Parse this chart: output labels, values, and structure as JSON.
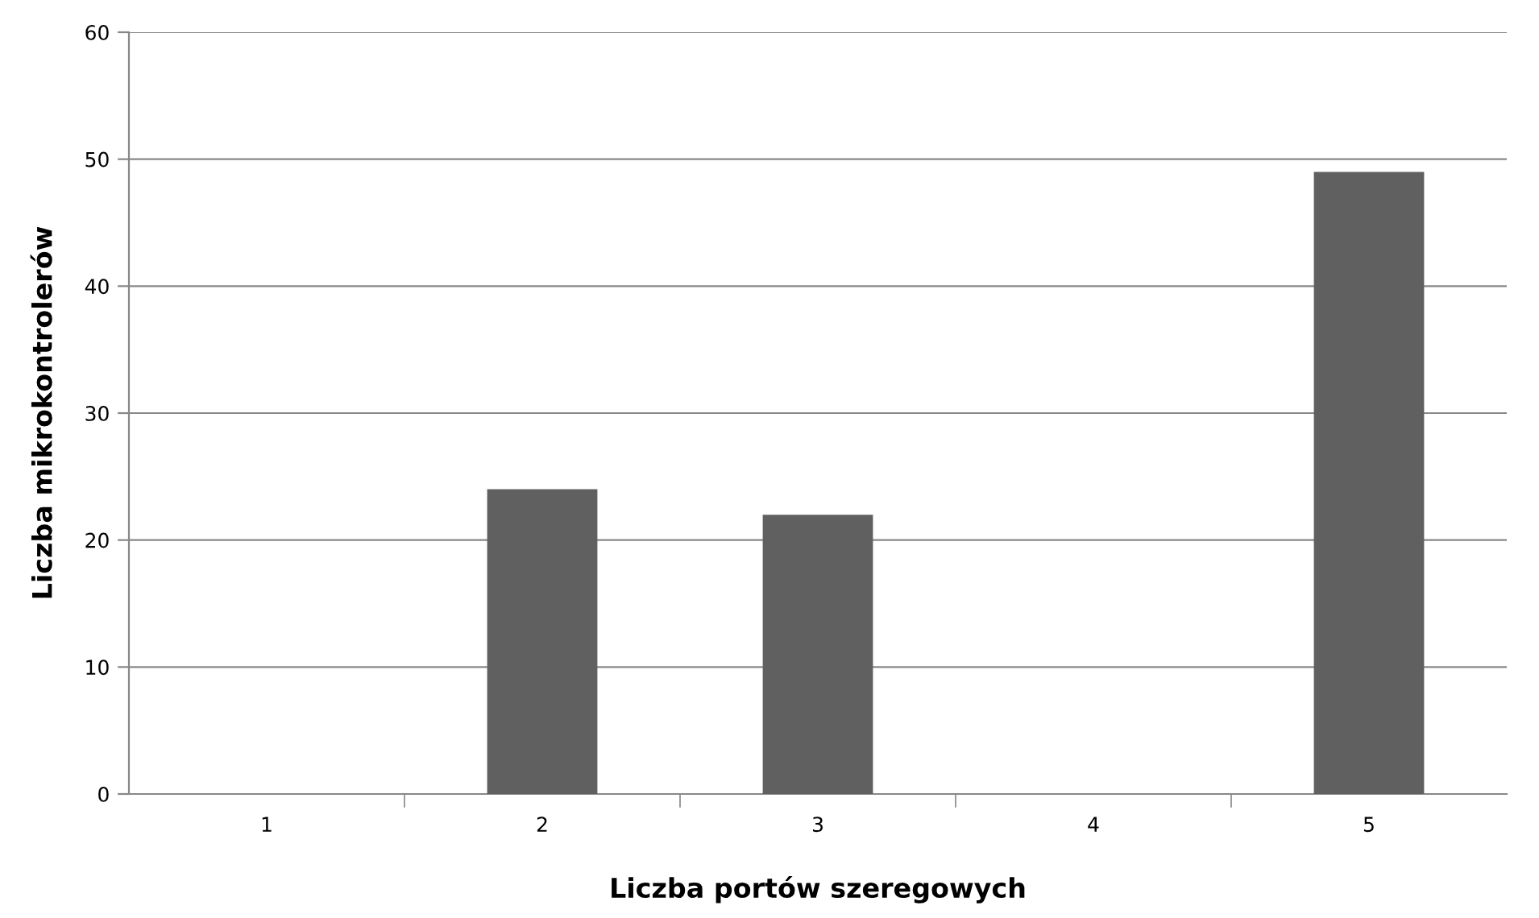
{
  "chart_data": {
    "type": "bar",
    "xlabel": "Liczba portów szeregowych",
    "ylabel": "Liczba mikrokontrolerów",
    "categories": [
      "1",
      "2",
      "3",
      "4",
      "5"
    ],
    "values": [
      0,
      24,
      22,
      0,
      49
    ],
    "color": "#606060",
    "ylim": [
      0,
      60
    ],
    "yticks": [
      0,
      10,
      20,
      30,
      40,
      50,
      60
    ],
    "grid": "y",
    "legend": false
  }
}
